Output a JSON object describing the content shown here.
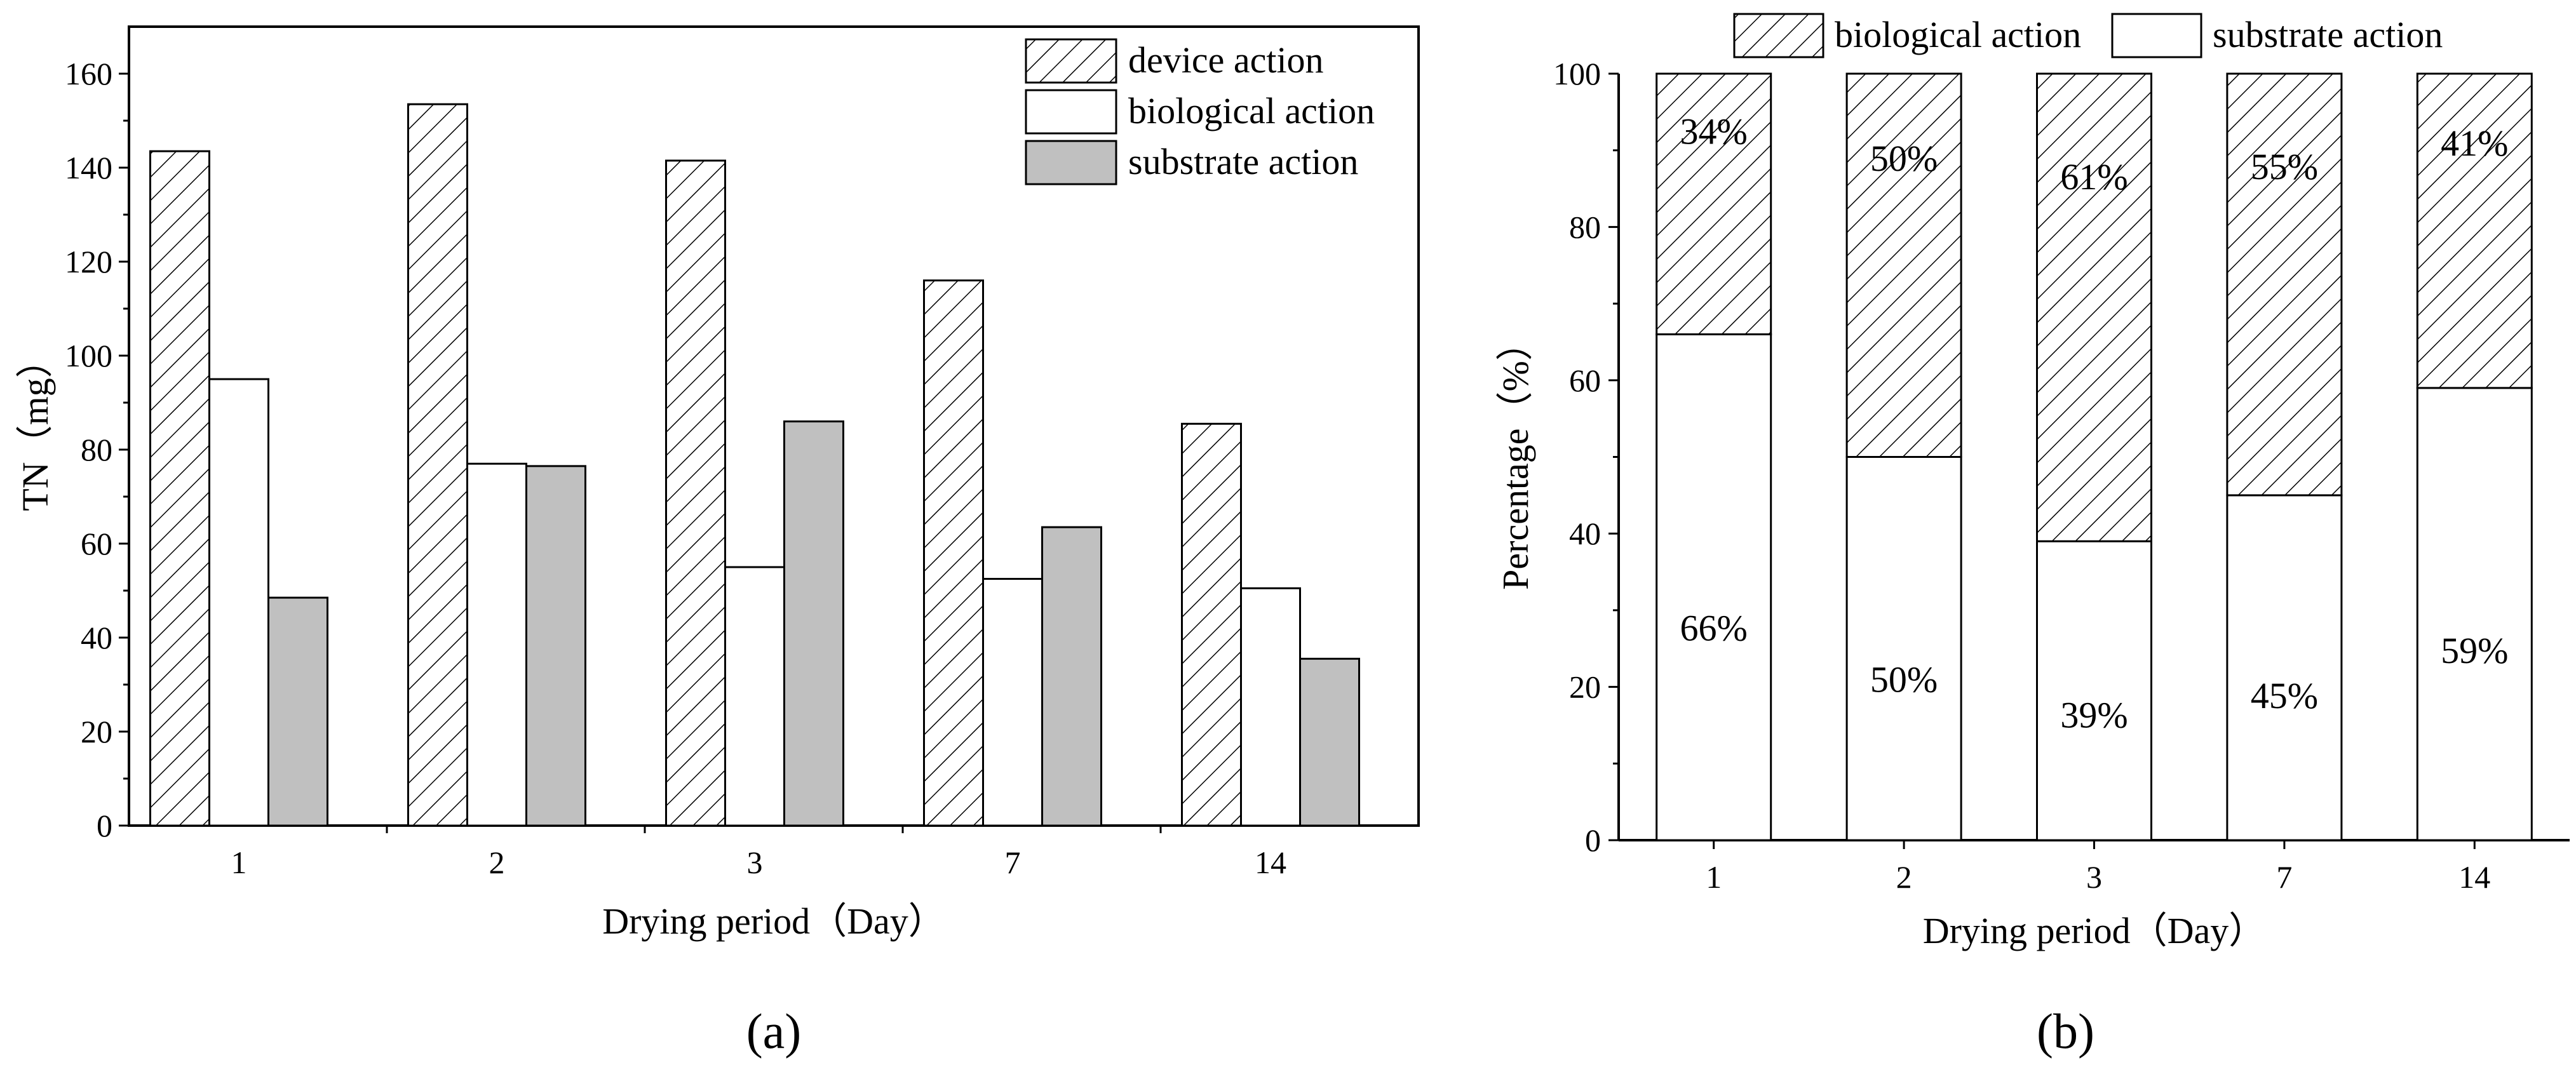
{
  "chart_data": [
    {
      "type": "bar",
      "panel_label": "(a)",
      "categories": [
        "1",
        "2",
        "3",
        "7",
        "14"
      ],
      "series": [
        {
          "name": "device action",
          "values": [
            143.5,
            153.5,
            141.5,
            116.0,
            85.5
          ],
          "fill": "hatch"
        },
        {
          "name": "biological action",
          "values": [
            95.0,
            77.0,
            55.0,
            52.5,
            50.5
          ],
          "fill": "#ffffff"
        },
        {
          "name": "substrate action",
          "values": [
            48.5,
            76.5,
            86.0,
            63.5,
            35.5
          ],
          "fill": "#c0c0c0"
        }
      ],
      "xlabel": "Drying period（Day）",
      "ylabel": "TN（mg）",
      "ylim": [
        0,
        170
      ],
      "yticks": [
        0,
        20,
        40,
        60,
        80,
        100,
        120,
        140,
        160
      ],
      "legend": "top-right",
      "grid": false
    },
    {
      "type": "bar",
      "stacked": true,
      "panel_label": "(b)",
      "categories": [
        "1",
        "2",
        "3",
        "7",
        "14"
      ],
      "series": [
        {
          "name": "substrate action",
          "values": [
            66,
            50,
            39,
            45,
            59
          ],
          "labels": [
            "66%",
            "50%",
            "39%",
            "45%",
            "59%"
          ],
          "fill": "#ffffff"
        },
        {
          "name": "biological action",
          "values": [
            34,
            50,
            61,
            55,
            41
          ],
          "labels": [
            "34%",
            "50%",
            "61%",
            "55%",
            "41%"
          ],
          "fill": "hatch"
        }
      ],
      "xlabel": "Drying period（Day）",
      "ylabel": "Percentage（%）",
      "ylim": [
        0,
        100
      ],
      "yticks": [
        0,
        20,
        40,
        60,
        80,
        100
      ],
      "legend": "top",
      "grid": false
    }
  ]
}
